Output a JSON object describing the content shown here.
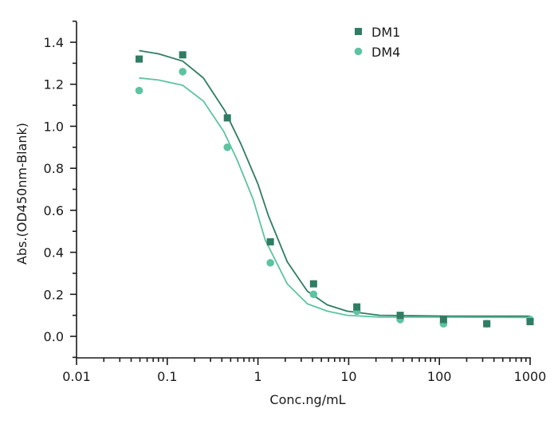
{
  "chart_data": {
    "type": "scatter",
    "title": "",
    "xlabel": "Conc.ng/mL",
    "ylabel": "Abs.(OD450nm-Blank)",
    "xscale": "log",
    "xlim": [
      0.01,
      1000
    ],
    "ylim": [
      -0.1,
      1.5
    ],
    "x_ticks": [
      "0.01",
      "0.1",
      "1",
      "10",
      "100",
      "1000"
    ],
    "y_ticks": [
      "0.0",
      "0.2",
      "0.4",
      "0.6",
      "0.8",
      "1.0",
      "1.2",
      "1.4"
    ],
    "grid": false,
    "legend_position": "upper-right-inside",
    "series": [
      {
        "name": "DM1",
        "marker": "square",
        "color": "#2f7d62",
        "x": [
          0.049,
          0.148,
          0.46,
          1.37,
          4.1,
          12.3,
          37,
          111,
          333,
          1000
        ],
        "y": [
          1.32,
          1.34,
          1.04,
          0.45,
          0.25,
          0.14,
          0.1,
          0.08,
          0.06,
          0.07
        ],
        "fit": {
          "x": [
            0.049,
            0.08,
            0.148,
            0.25,
            0.43,
            0.65,
            1.0,
            1.3,
            2.1,
            3.5,
            5.8,
            9.6,
            22,
            130,
            1000
          ],
          "y": [
            1.36,
            1.345,
            1.31,
            1.23,
            1.075,
            0.915,
            0.725,
            0.575,
            0.355,
            0.215,
            0.15,
            0.12,
            0.1,
            0.096,
            0.096
          ]
        }
      },
      {
        "name": "DM4",
        "marker": "circle",
        "color": "#5cc4a0",
        "x": [
          0.049,
          0.148,
          0.46,
          1.37,
          4.1,
          12.3,
          37,
          111,
          333,
          1000
        ],
        "y": [
          1.17,
          1.26,
          0.9,
          0.35,
          0.2,
          0.12,
          0.08,
          0.06,
          0.06,
          0.08
        ],
        "fit": {
          "x": [
            0.049,
            0.08,
            0.148,
            0.25,
            0.42,
            0.59,
            0.89,
            1.2,
            2.1,
            3.5,
            5.8,
            9.6,
            22,
            1000
          ],
          "y": [
            1.23,
            1.22,
            1.195,
            1.12,
            0.975,
            0.84,
            0.65,
            0.46,
            0.25,
            0.155,
            0.12,
            0.1,
            0.092,
            0.09
          ]
        }
      }
    ]
  },
  "legend": {
    "items": [
      {
        "label": "DM1",
        "marker": "square",
        "color": "#2f7d62"
      },
      {
        "label": "DM4",
        "marker": "circle",
        "color": "#5cc4a0"
      }
    ]
  },
  "axes": {
    "x_title": "Conc.ng/mL",
    "y_title": "Abs.(OD450nm-Blank)"
  }
}
